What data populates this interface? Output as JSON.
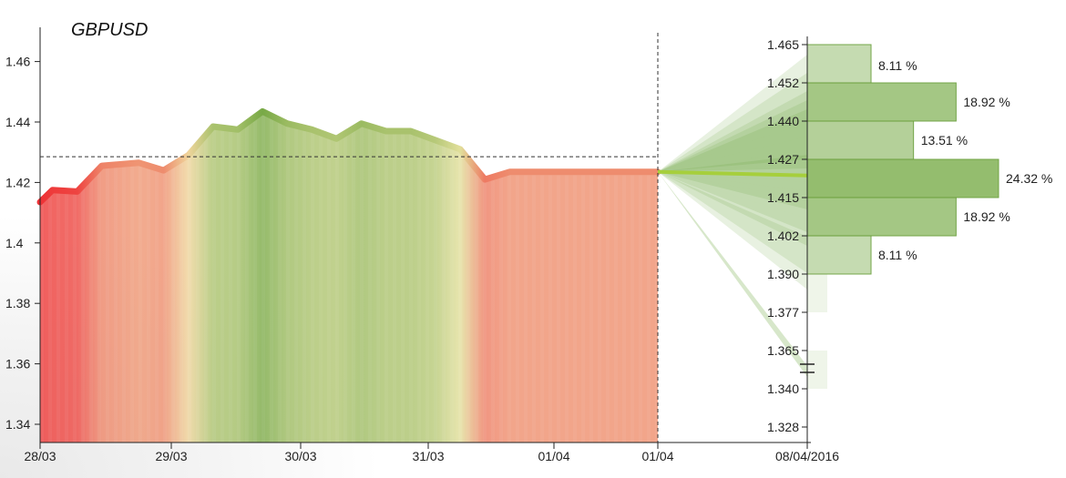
{
  "chart_data": [
    {
      "type": "area",
      "title": "GBPUSD",
      "xlabel": "",
      "ylabel": "",
      "ylim": [
        1.335,
        1.47
      ],
      "y_ticks": [
        "1.34",
        "1.36",
        "1.38",
        "1.4",
        "1.42",
        "1.44",
        "1.46"
      ],
      "x_tick_labels": [
        "28/03",
        "29/03",
        "30/03",
        "31/03",
        "01/04",
        "01/04"
      ],
      "reference_price": 1.4285,
      "series": [
        {
          "t": [
            0,
            0.1,
            0.3,
            0.5,
            0.8,
            1.0,
            1.2,
            1.4,
            1.6,
            1.8,
            2.0,
            2.2,
            2.4,
            2.6,
            2.8,
            3.0,
            3.2,
            3.4,
            3.6,
            3.8,
            4.0,
            4.2,
            4.3,
            4.5,
            4.7,
            5.0
          ],
          "values": [
            1.4135,
            1.4175,
            1.417,
            1.4255,
            1.4265,
            1.424,
            1.429,
            1.4385,
            1.4375,
            1.4435,
            1.4395,
            1.4375,
            1.4345,
            1.4395,
            1.437,
            1.437,
            1.434,
            1.431,
            1.421,
            1.4235,
            1.4235,
            1.4235,
            1.4235,
            1.4235,
            1.4235,
            1.4235
          ],
          "sentiment": [
            -1.0,
            -0.95,
            -0.9,
            -0.55,
            -0.45,
            -0.5,
            -0.1,
            0.5,
            0.55,
            0.85,
            0.6,
            0.5,
            0.45,
            0.6,
            0.5,
            0.5,
            0.4,
            0.1,
            -0.6,
            -0.5,
            -0.5,
            -0.5,
            -0.5,
            -0.5,
            -0.5,
            -0.5
          ]
        }
      ],
      "colors": {
        "negative": "#ee3b3b",
        "neutral": "#efe6a6",
        "positive": "#6aa23a"
      }
    },
    {
      "type": "bar",
      "orientation": "horizontal",
      "title": "",
      "x_tick_label": "08/04/2016",
      "y_ticks": [
        "1.465",
        "1.452",
        "1.440",
        "1.427",
        "1.415",
        "1.402",
        "1.390",
        "1.377",
        "1.365",
        "1.340",
        "1.328"
      ],
      "axis_break_between": [
        "1.365",
        "1.340"
      ],
      "categories": [
        "1.452-1.465",
        "1.440-1.452",
        "1.427-1.440",
        "1.415-1.427",
        "1.402-1.415",
        "1.390-1.402",
        "1.377-1.390",
        "1.340-1.365"
      ],
      "values": [
        8.11,
        18.92,
        13.51,
        24.32,
        18.92,
        8.11,
        0,
        0
      ],
      "value_labels": [
        "8.11 %",
        "18.92 %",
        "13.51 %",
        "24.32 %",
        "18.92 %",
        "8.11 %",
        "",
        ""
      ],
      "forecast_origin": 1.4235
    }
  ]
}
